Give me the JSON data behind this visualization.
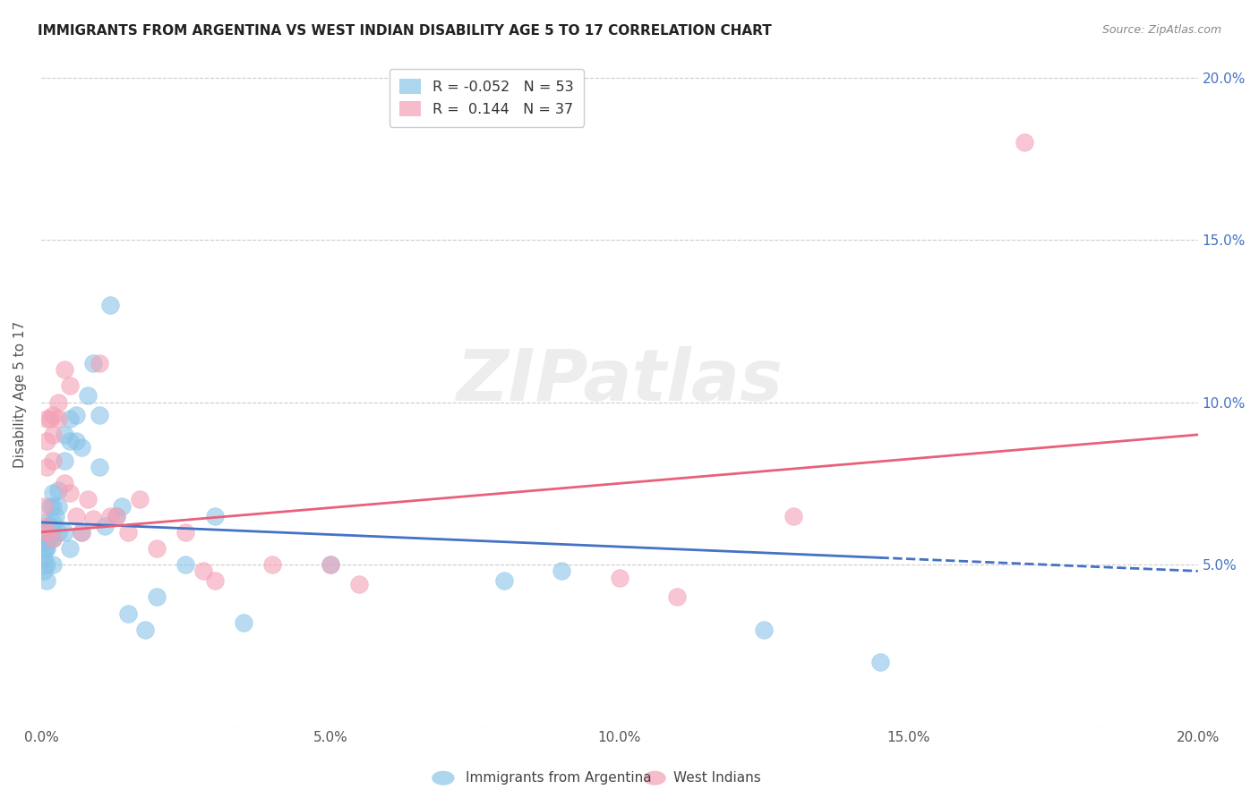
{
  "title": "IMMIGRANTS FROM ARGENTINA VS WEST INDIAN DISABILITY AGE 5 TO 17 CORRELATION CHART",
  "source": "Source: ZipAtlas.com",
  "ylabel": "Disability Age 5 to 17",
  "xlim": [
    0,
    0.2
  ],
  "ylim": [
    0,
    0.2
  ],
  "argentina_color": "#89C4E8",
  "westindian_color": "#F4A0B5",
  "argentina_line_color": "#4472C4",
  "westindian_line_color": "#E8607A",
  "argentina_R": -0.052,
  "argentina_N": 53,
  "westindian_R": 0.144,
  "westindian_N": 37,
  "legend_label_1": "Immigrants from Argentina",
  "legend_label_2": "West Indians",
  "watermark": "ZIPatlas",
  "argentina_x": [
    0.0005,
    0.0005,
    0.0005,
    0.0005,
    0.0005,
    0.0005,
    0.0008,
    0.001,
    0.001,
    0.001,
    0.001,
    0.001,
    0.0015,
    0.0015,
    0.0015,
    0.002,
    0.002,
    0.002,
    0.002,
    0.002,
    0.0025,
    0.003,
    0.003,
    0.003,
    0.004,
    0.004,
    0.004,
    0.005,
    0.005,
    0.005,
    0.006,
    0.006,
    0.007,
    0.007,
    0.008,
    0.009,
    0.01,
    0.01,
    0.011,
    0.012,
    0.013,
    0.014,
    0.015,
    0.018,
    0.02,
    0.025,
    0.03,
    0.035,
    0.05,
    0.08,
    0.09,
    0.125,
    0.145
  ],
  "argentina_y": [
    0.06,
    0.057,
    0.055,
    0.052,
    0.05,
    0.048,
    0.055,
    0.063,
    0.058,
    0.055,
    0.05,
    0.045,
    0.068,
    0.062,
    0.058,
    0.072,
    0.068,
    0.063,
    0.058,
    0.05,
    0.065,
    0.073,
    0.068,
    0.06,
    0.09,
    0.082,
    0.06,
    0.095,
    0.088,
    0.055,
    0.096,
    0.088,
    0.086,
    0.06,
    0.102,
    0.112,
    0.096,
    0.08,
    0.062,
    0.13,
    0.065,
    0.068,
    0.035,
    0.03,
    0.04,
    0.05,
    0.065,
    0.032,
    0.05,
    0.045,
    0.048,
    0.03,
    0.02
  ],
  "westindian_x": [
    0.0005,
    0.0005,
    0.001,
    0.001,
    0.001,
    0.001,
    0.0015,
    0.002,
    0.002,
    0.002,
    0.002,
    0.003,
    0.003,
    0.004,
    0.004,
    0.005,
    0.005,
    0.006,
    0.007,
    0.008,
    0.009,
    0.01,
    0.012,
    0.013,
    0.015,
    0.017,
    0.02,
    0.025,
    0.028,
    0.03,
    0.04,
    0.05,
    0.055,
    0.1,
    0.11,
    0.13,
    0.17
  ],
  "westindian_y": [
    0.068,
    0.062,
    0.095,
    0.088,
    0.08,
    0.06,
    0.095,
    0.096,
    0.09,
    0.082,
    0.058,
    0.1,
    0.095,
    0.11,
    0.075,
    0.105,
    0.072,
    0.065,
    0.06,
    0.07,
    0.064,
    0.112,
    0.065,
    0.065,
    0.06,
    0.07,
    0.055,
    0.06,
    0.048,
    0.045,
    0.05,
    0.05,
    0.044,
    0.046,
    0.04,
    0.065,
    0.18
  ],
  "right_ytick_color": "#4472C4"
}
